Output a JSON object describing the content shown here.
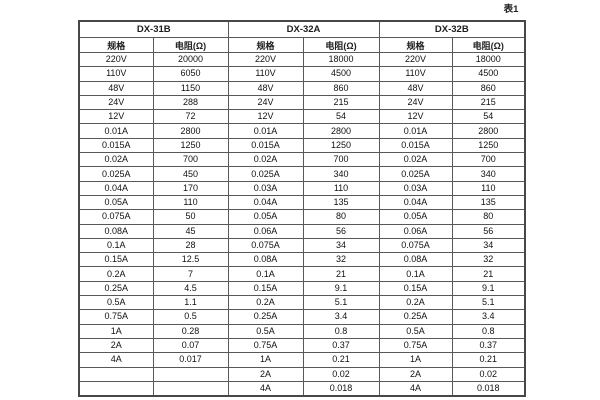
{
  "page": {
    "caption": "表1"
  },
  "table": {
    "groups": [
      {
        "name": "DX-31B",
        "spec_header": "规格",
        "resistance_header": "电阻(Ω)"
      },
      {
        "name": "DX-32A",
        "spec_header": "规格",
        "resistance_header": "电阻(Ω)"
      },
      {
        "name": "DX-32B",
        "spec_header": "规格",
        "resistance_header": "电阻(Ω)"
      }
    ],
    "rows": [
      [
        "220V",
        "20000",
        "220V",
        "18000",
        "220V",
        "18000"
      ],
      [
        "110V",
        "6050",
        "110V",
        "4500",
        "110V",
        "4500"
      ],
      [
        "48V",
        "1150",
        "48V",
        "860",
        "48V",
        "860"
      ],
      [
        "24V",
        "288",
        "24V",
        "215",
        "24V",
        "215"
      ],
      [
        "12V",
        "72",
        "12V",
        "54",
        "12V",
        "54"
      ],
      [
        "0.01A",
        "2800",
        "0.01A",
        "2800",
        "0.01A",
        "2800"
      ],
      [
        "0.015A",
        "1250",
        "0.015A",
        "1250",
        "0.015A",
        "1250"
      ],
      [
        "0.02A",
        "700",
        "0.02A",
        "700",
        "0.02A",
        "700"
      ],
      [
        "0.025A",
        "450",
        "0.025A",
        "340",
        "0.025A",
        "340"
      ],
      [
        "0.04A",
        "170",
        "0.03A",
        "110",
        "0.03A",
        "110"
      ],
      [
        "0.05A",
        "110",
        "0.04A",
        "135",
        "0.04A",
        "135"
      ],
      [
        "0.075A",
        "50",
        "0.05A",
        "80",
        "0.05A",
        "80"
      ],
      [
        "0.08A",
        "45",
        "0.06A",
        "56",
        "0.06A",
        "56"
      ],
      [
        "0.1A",
        "28",
        "0.075A",
        "34",
        "0.075A",
        "34"
      ],
      [
        "0.15A",
        "12.5",
        "0.08A",
        "32",
        "0.08A",
        "32"
      ],
      [
        "0.2A",
        "7",
        "0.1A",
        "21",
        "0.1A",
        "21"
      ],
      [
        "0.25A",
        "4.5",
        "0.15A",
        "9.1",
        "0.15A",
        "9.1"
      ],
      [
        "0.5A",
        "1.1",
        "0.2A",
        "5.1",
        "0.2A",
        "5.1"
      ],
      [
        "0.75A",
        "0.5",
        "0.25A",
        "3.4",
        "0.25A",
        "3.4"
      ],
      [
        "1A",
        "0.28",
        "0.5A",
        "0.8",
        "0.5A",
        "0.8"
      ],
      [
        "2A",
        "0.07",
        "0.75A",
        "0.37",
        "0.75A",
        "0.37"
      ],
      [
        "4A",
        "0.017",
        "1A",
        "0.21",
        "1A",
        "0.21"
      ],
      [
        "",
        "",
        "2A",
        "0.02",
        "2A",
        "0.02"
      ],
      [
        "",
        "",
        "4A",
        "0.018",
        "4A",
        "0.018"
      ]
    ]
  }
}
